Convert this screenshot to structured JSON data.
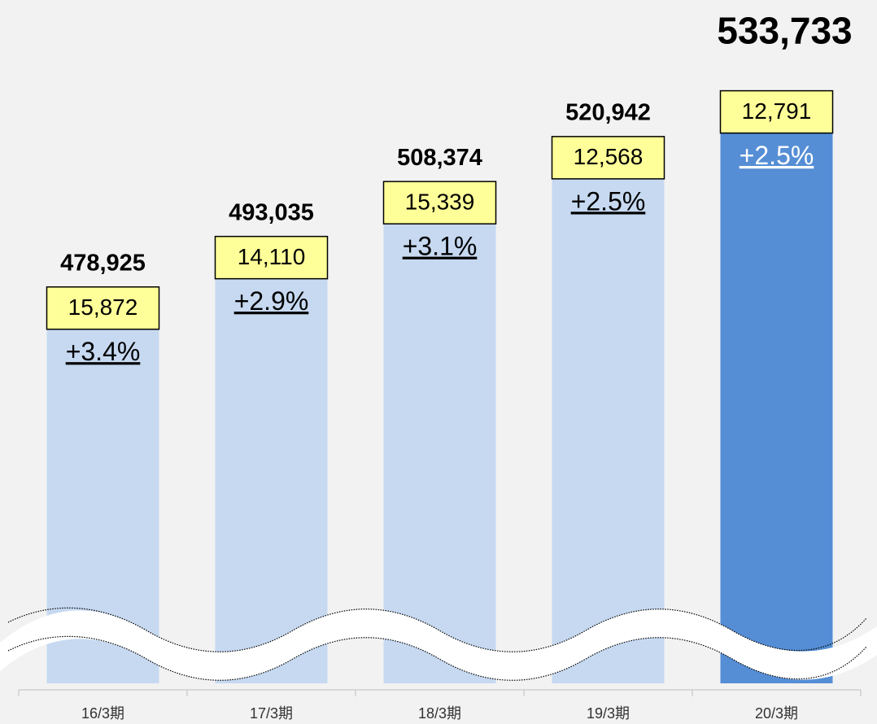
{
  "chart_data": {
    "type": "bar",
    "categories": [
      "16/3期",
      "17/3期",
      "18/3期",
      "19/3期",
      "20/3期"
    ],
    "values": [
      478925,
      493035,
      508374,
      520942,
      533733
    ],
    "value_labels": [
      "478,925",
      "493,035",
      "508,374",
      "520,942",
      "533,733"
    ],
    "colors": [
      "#c6d9f1",
      "#c6d9f1",
      "#c6d9f1",
      "#c6d9f1",
      "#558ed5"
    ],
    "value_label_colors": [
      "#000000",
      "#000000",
      "#000000",
      "#000000",
      "#0070c0"
    ],
    "increase": {
      "values": [
        15872,
        14110,
        15339,
        12568,
        12791
      ],
      "value_labels": [
        "15,872",
        "14,110",
        "15,339",
        "12,568",
        "12,791"
      ]
    },
    "growth": {
      "values": [
        3.4,
        2.9,
        3.1,
        2.5,
        2.5
      ],
      "value_labels": [
        "+3.4%",
        "+2.9%",
        "+3.1%",
        "+2.5%",
        "+2.5%"
      ]
    },
    "ylim": [
      380000,
      540000
    ]
  }
}
